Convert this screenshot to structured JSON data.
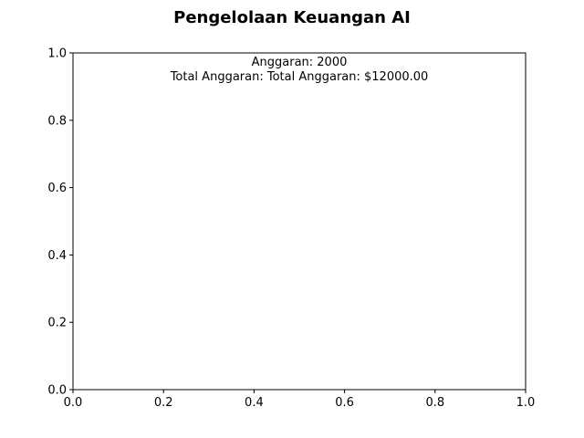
{
  "chart_data": {
    "type": "line",
    "title": "Pengelolaan Keuangan AI",
    "xlabel": "",
    "ylabel": "",
    "xlim": [
      0.0,
      1.0
    ],
    "ylim": [
      0.0,
      1.0
    ],
    "xticks": [
      "0.0",
      "0.2",
      "0.4",
      "0.6",
      "0.8",
      "1.0"
    ],
    "yticks": [
      "0.0",
      "0.2",
      "0.4",
      "0.6",
      "0.8",
      "1.0"
    ],
    "grid": false,
    "series": [],
    "annotations": [
      "Anggaran: 2000",
      "Total Anggaran: Total Anggaran: $12000.00"
    ]
  }
}
